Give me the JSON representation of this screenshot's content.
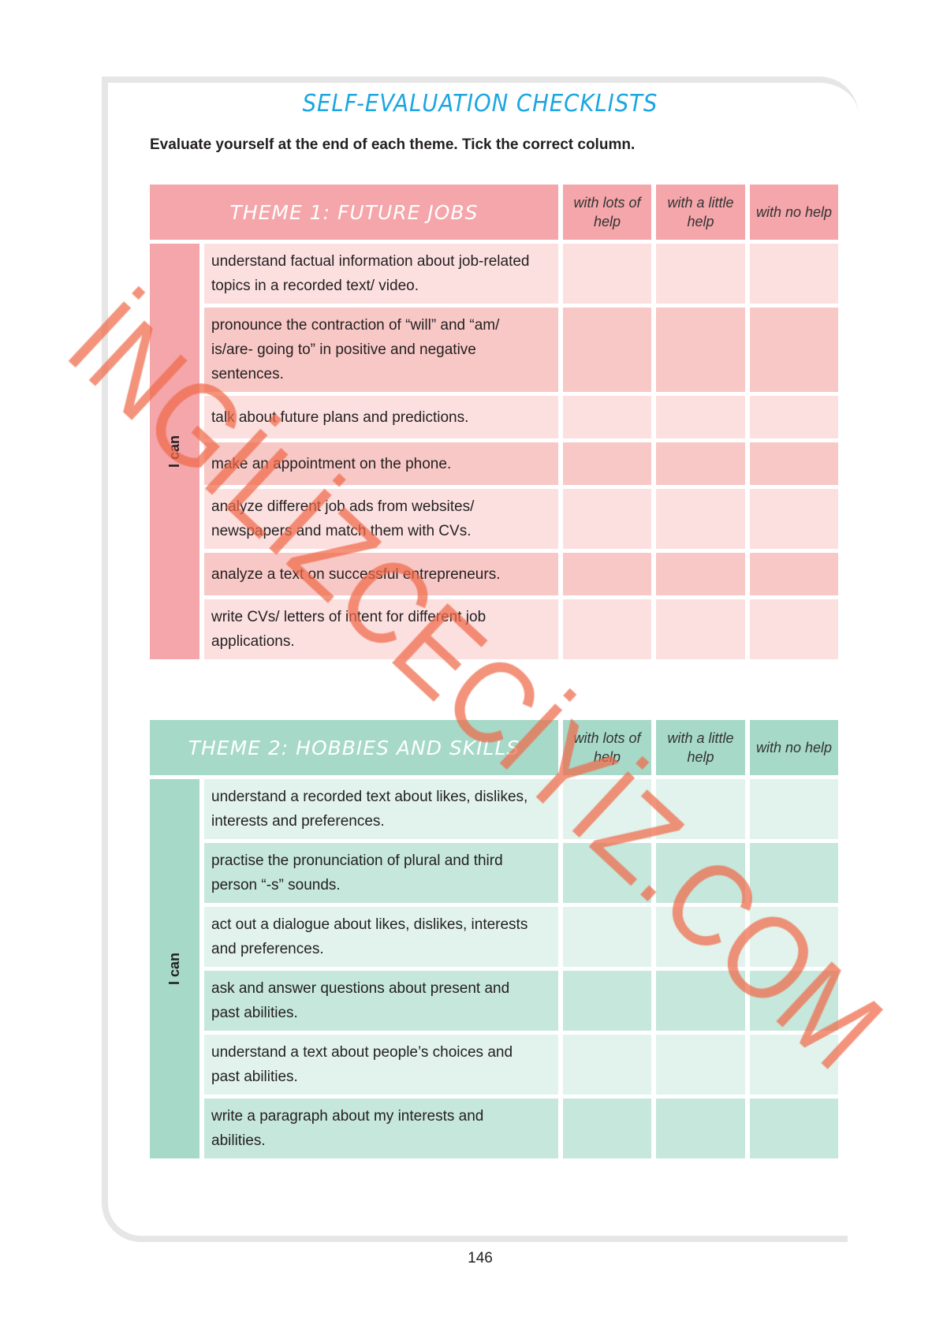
{
  "title": "SELF-EVALUATION CHECKLISTS",
  "instruction": "Evaluate yourself at the end of each theme. Tick the correct column.",
  "columns": [
    "with lots of help",
    "with a little help",
    "with no help"
  ],
  "side_label": "I can",
  "colors": {
    "title": "#1ba6e1",
    "theme1": "#f4a6aa",
    "theme2": "#a6d9c8",
    "watermark": "#f06a4a"
  },
  "themes": [
    {
      "title": "THEME 1: FUTURE JOBS",
      "items": [
        "understand factual information about job-related topics in a recorded text/ video.",
        "pronounce the contraction of “will” and “am/ is/are- going to” in positive and negative sentences.",
        "talk about future plans and predictions.",
        "make an appointment on the phone.",
        "analyze different job ads from websites/ newspapers and match them with CVs.",
        "analyze a text on successful entrepreneurs.",
        "write CVs/ letters of intent for different job applications."
      ]
    },
    {
      "title": "THEME 2: HOBBIES AND SKILLS",
      "items": [
        "understand a recorded text about likes, dislikes, interests and preferences.",
        "practise the pronunciation of plural and third person “-s” sounds.",
        "act out a dialogue about likes, dislikes, interests and preferences.",
        "ask and answer questions about present and past abilities.",
        "understand a text about people’s choices and past abilities.",
        "write a paragraph about my interests and abilities."
      ]
    }
  ],
  "page_number": "146",
  "watermark": "İNGİLİZCECİYİZ.COM"
}
